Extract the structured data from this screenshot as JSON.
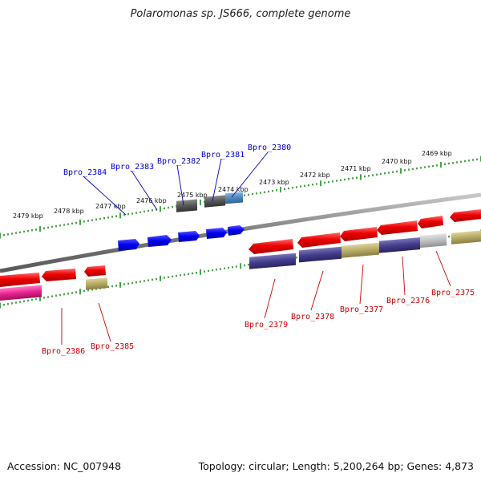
{
  "title": "Polaromonas sp. JS666, complete genome",
  "footer": {
    "accession": "Accession: NC_007948",
    "summary": "Topology: circular; Length: 5,200,264 bp; Genes: 4,873"
  },
  "colors": {
    "backbone": "#8a8a8a",
    "tick": "#1e8a1e",
    "label_top": "#0000cc",
    "label_bottom": "#cc0000"
  },
  "kbp_labels": [
    "2479 kbp",
    "2478 kbp",
    "2477 kbp",
    "2476 kbp",
    "2475 kbp",
    "2474 kbp",
    "2473 kbp",
    "2472 kbp",
    "2471 kbp",
    "2470 kbp",
    "2469 kbp"
  ],
  "gene_labels_top": [
    "Bpro_2384",
    "Bpro_2383",
    "Bpro_2382",
    "Bpro_2381",
    "Bpro_2380"
  ],
  "gene_labels_bottom": [
    "Bpro_2386",
    "Bpro_2385",
    "Bpro_2379",
    "Bpro_2378",
    "Bpro_2377",
    "Bpro_2376",
    "Bpro_2375"
  ]
}
